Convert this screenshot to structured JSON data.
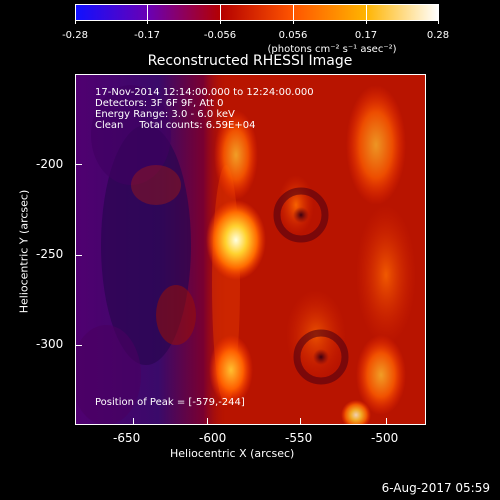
{
  "colorbar": {
    "ticks": [
      "-0.28",
      "-0.17",
      "-0.056",
      "0.056",
      "0.17",
      "0.28"
    ],
    "label": "(photons cm⁻² s⁻¹ asec⁻²)",
    "colors": [
      "#1010ff",
      "#6a00b4",
      "#b40000",
      "#ff5500",
      "#ffb400",
      "#ffffff"
    ]
  },
  "title": "Reconstructed RHESSI Image",
  "info": {
    "line1": "17-Nov-2014 12:14:00.000 to 12:24:00.000",
    "line2": "Detectors: 3F 6F 9F, Att 0",
    "line3": "Energy Range: 3.0 - 6.0 keV",
    "line4": "Clean     Total counts: 6.59E+04"
  },
  "peak": "Position of Peak = [-579,-244]",
  "axes": {
    "xlabel": "Heliocentric X (arcsec)",
    "ylabel": "Heliocentric Y (arcsec)",
    "xticks": [
      "-650",
      "-600",
      "-550",
      "-500"
    ],
    "yticks": [
      "-200",
      "-250",
      "-300"
    ]
  },
  "timestamp": "6-Aug-2017 05:59",
  "chart_data": {
    "type": "heatmap",
    "title": "Reconstructed RHESSI Image",
    "xlabel": "Heliocentric X (arcsec)",
    "ylabel": "Heliocentric Y (arcsec)",
    "xlim": [
      -675,
      -475
    ],
    "ylim": [
      -345,
      -145
    ],
    "xticks": [
      -650,
      -600,
      -550,
      -500
    ],
    "yticks": [
      -200,
      -250,
      -300
    ],
    "colorbar_range": [
      -0.28,
      0.28
    ],
    "colorbar_ticks": [
      -0.28,
      -0.17,
      -0.056,
      0.056,
      0.17,
      0.28
    ],
    "peak_position": [
      -579,
      -244
    ],
    "bright_regions": [
      {
        "x": -579,
        "y": -244,
        "level": "peak"
      },
      {
        "x": -585,
        "y": -325,
        "level": "high"
      },
      {
        "x": -580,
        "y": -185,
        "level": "medium"
      },
      {
        "x": -520,
        "y": -185,
        "level": "medium"
      },
      {
        "x": -520,
        "y": -290,
        "level": "medium"
      },
      {
        "x": -510,
        "y": -335,
        "level": "medium"
      }
    ]
  }
}
